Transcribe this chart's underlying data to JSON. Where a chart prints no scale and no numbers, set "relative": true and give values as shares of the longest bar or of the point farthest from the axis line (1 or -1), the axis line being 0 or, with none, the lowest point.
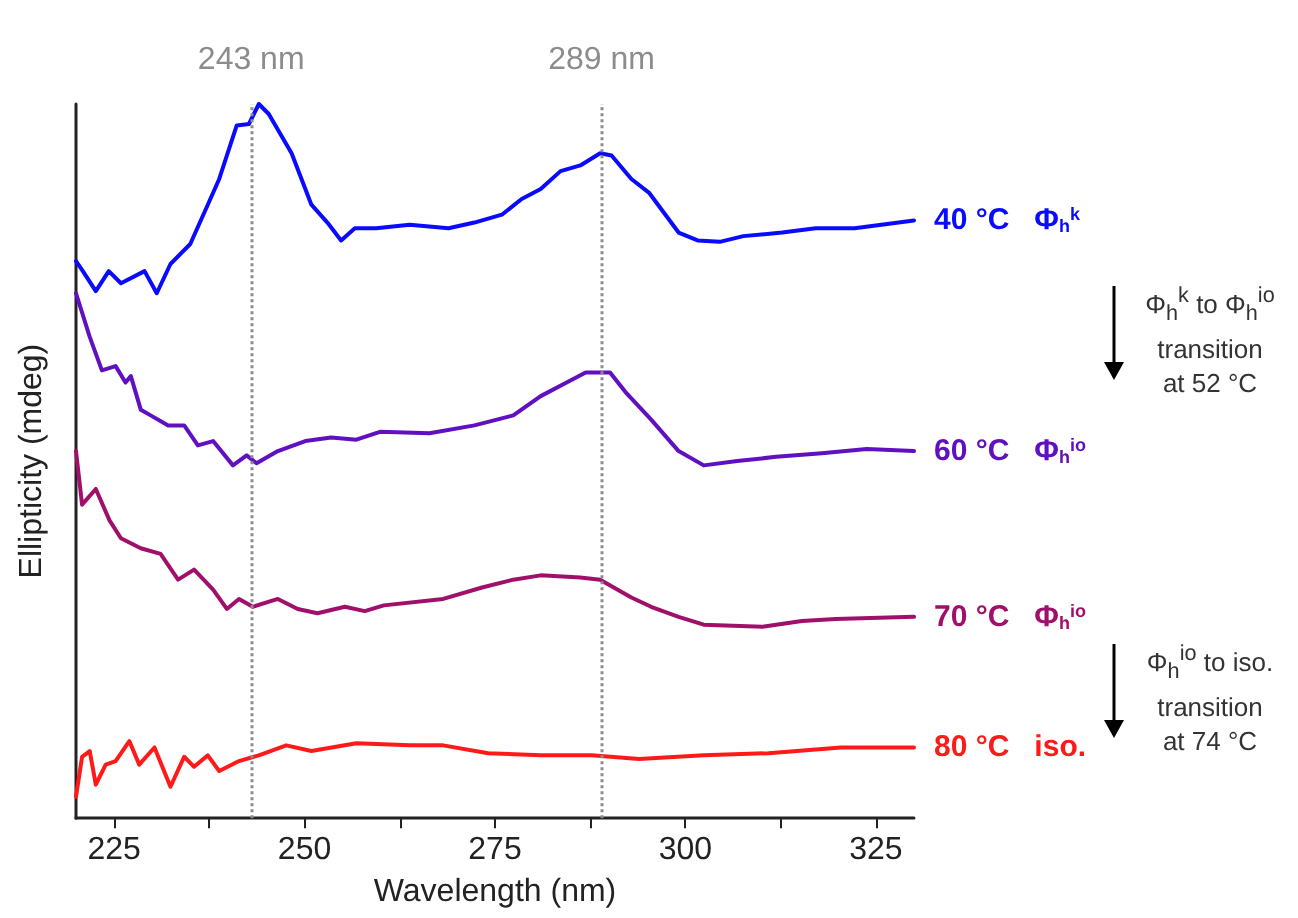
{
  "chart_data": {
    "type": "line",
    "relative": true,
    "xlabel": "Wavelength (nm)",
    "ylabel": "Ellipticity (mdeg)",
    "xlim": [
      220,
      330
    ],
    "xticks": [
      225,
      {
        "value": 237.5,
        "label": null
      },
      250,
      {
        "value": 262.5,
        "label": null
      },
      275,
      {
        "value": 287.5,
        "label": null
      },
      300,
      {
        "value": 312.5,
        "label": null
      },
      325
    ],
    "grid": false,
    "legend": false,
    "marker": "none",
    "line_style": "solid",
    "ref_lines": [
      {
        "axis": "x",
        "value": 243,
        "label": "243 nm",
        "color": "#8c8c8c",
        "line_style": "dotted"
      },
      {
        "axis": "x",
        "value": 289,
        "label": "289 nm",
        "color": "#8c8c8c",
        "line_style": "dotted"
      }
    ],
    "annotations": [
      "Φ$_{h}$$^{k}$ to Φ$_{h}$$^{io}$\ntransition\nat 52 °C",
      "Φ$_{h}$$^{io}$ to iso.\ntransition\nat 74 °C"
    ],
    "series": [
      {
        "name": "40 °C   Φ$_{h}$$^{k}$",
        "color": "#0a0aff",
        "x": [
          220.0,
          220.9,
          222.6,
          224.3,
          225.9,
          229.0,
          230.6,
          232.4,
          235.0,
          237.3,
          238.8,
          241.1,
          242.7,
          244.0,
          245.3,
          248.3,
          250.9,
          253.0,
          254.8,
          256.6,
          259.4,
          263.8,
          268.9,
          272.3,
          275.9,
          278.5,
          281.0,
          283.6,
          286.2,
          288.8,
          290.3,
          292.9,
          295.2,
          299.1,
          301.6,
          304.5,
          307.6,
          312.7,
          317.1,
          322.2,
          330.0
        ],
        "values": [
          0.78,
          0.766,
          0.738,
          0.766,
          0.749,
          0.766,
          0.735,
          0.776,
          0.804,
          0.859,
          0.895,
          0.97,
          0.972,
          1.0,
          0.986,
          0.931,
          0.859,
          0.834,
          0.809,
          0.826,
          0.826,
          0.831,
          0.826,
          0.834,
          0.845,
          0.867,
          0.881,
          0.906,
          0.914,
          0.931,
          0.928,
          0.895,
          0.876,
          0.82,
          0.809,
          0.807,
          0.815,
          0.82,
          0.826,
          0.826,
          0.837
        ]
      },
      {
        "name": "60 °C   Φ$_{h}$$^{io}$",
        "color": "#6010c0",
        "x": [
          220.0,
          221.8,
          223.4,
          225.2,
          226.5,
          227.2,
          228.5,
          229.8,
          232.1,
          234.2,
          236.0,
          238.0,
          240.6,
          242.4,
          243.7,
          246.5,
          250.1,
          253.5,
          256.8,
          259.9,
          266.4,
          272.3,
          277.4,
          281.0,
          284.4,
          286.9,
          290.1,
          292.1,
          295.5,
          299.1,
          302.4,
          306.8,
          311.9,
          317.9,
          323.8,
          330.0
        ],
        "values": [
          0.735,
          0.674,
          0.627,
          0.633,
          0.61,
          0.619,
          0.572,
          0.564,
          0.55,
          0.55,
          0.522,
          0.528,
          0.494,
          0.508,
          0.497,
          0.514,
          0.528,
          0.533,
          0.53,
          0.541,
          0.539,
          0.55,
          0.564,
          0.591,
          0.61,
          0.624,
          0.624,
          0.597,
          0.558,
          0.514,
          0.494,
          0.5,
          0.506,
          0.511,
          0.517,
          0.514
        ]
      },
      {
        "name": "70 °C   Φ$_{h}$$^{io}$",
        "color": "#a0106a",
        "x": [
          220.0,
          220.8,
          222.6,
          224.4,
          225.9,
          228.5,
          231.1,
          233.4,
          235.5,
          238.0,
          239.8,
          241.4,
          243.2,
          246.5,
          249.1,
          251.7,
          255.3,
          257.9,
          260.4,
          268.2,
          273.3,
          277.4,
          281.0,
          286.2,
          288.8,
          292.9,
          295.5,
          299.1,
          302.4,
          310.1,
          315.3,
          319.7,
          330.0
        ],
        "values": [
          0.514,
          0.439,
          0.461,
          0.417,
          0.392,
          0.378,
          0.37,
          0.334,
          0.348,
          0.32,
          0.293,
          0.307,
          0.296,
          0.307,
          0.293,
          0.287,
          0.296,
          0.29,
          0.298,
          0.307,
          0.323,
          0.334,
          0.34,
          0.337,
          0.334,
          0.309,
          0.296,
          0.282,
          0.271,
          0.268,
          0.276,
          0.279,
          0.282
        ]
      },
      {
        "name": "80 °C   iso.",
        "color": "#ff1a1a",
        "x": [
          220.0,
          220.8,
          221.8,
          222.6,
          223.9,
          225.2,
          227.0,
          228.3,
          230.3,
          232.4,
          234.2,
          235.5,
          237.3,
          238.8,
          241.4,
          244.0,
          247.6,
          250.9,
          256.8,
          263.8,
          268.2,
          274.1,
          281.0,
          287.7,
          293.9,
          302.4,
          310.9,
          320.4,
          330.0
        ],
        "values": [
          0.03,
          0.086,
          0.094,
          0.047,
          0.075,
          0.08,
          0.108,
          0.075,
          0.099,
          0.044,
          0.086,
          0.072,
          0.088,
          0.066,
          0.08,
          0.088,
          0.102,
          0.094,
          0.105,
          0.102,
          0.102,
          0.091,
          0.088,
          0.088,
          0.083,
          0.088,
          0.091,
          0.099,
          0.099
        ]
      }
    ]
  }
}
